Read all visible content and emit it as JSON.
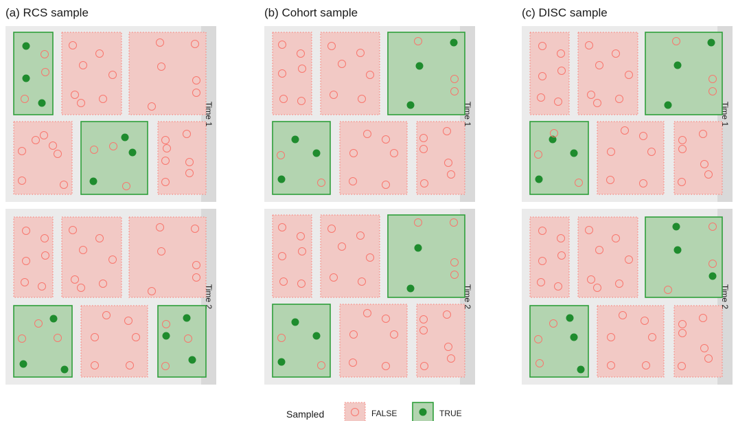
{
  "colors": {
    "panel_bg": "#ebebeb",
    "strip_bg": "#d9d9d9",
    "false_fill": "#f2c9c5",
    "false_stroke": "#f8766d",
    "true_fill": "#b3d4b0",
    "true_stroke": "#2e9e3a",
    "true_point": "#1f8c2e"
  },
  "icons": {
    "false_point": "hollow-circle-icon",
    "true_point": "filled-circle-icon"
  },
  "panels": [
    {
      "title": "(a) RCS sample",
      "facets": [
        {
          "label": "Time 1",
          "clusters": [
            {
              "sampled": true,
              "points": [
                [
                  1,
                  0
                ],
                [
                  0,
                  1
                ],
                [
                  1,
                  1
                ],
                [
                  0,
                  0
                ],
                [
                  1,
                  1
                ]
              ]
            },
            {
              "sampled": false,
              "points": [
                [
                  0
                ],
                [
                  0
                ],
                [
                  0
                ],
                [
                  0
                ],
                [
                  0
                ],
                [
                  0
                ],
                [
                  0
                ]
              ]
            },
            {
              "sampled": false,
              "points": [
                [
                  0
                ],
                [
                  0
                ],
                [
                  0
                ],
                [
                  0
                ],
                [
                  0
                ],
                [
                  0
                ]
              ]
            },
            {
              "sampled": false,
              "points": [
                [
                  0
                ],
                [
                  0
                ],
                [
                  0
                ],
                [
                  0
                ],
                [
                  0
                ],
                [
                  0
                ],
                [
                  0
                ]
              ]
            },
            {
              "sampled": true,
              "points": [
                [
                  0
                ],
                [
                  1
                ],
                [
                  1
                ],
                [
                  0
                ],
                [
                  1
                ],
                [
                  0
                ]
              ]
            },
            {
              "sampled": false,
              "points": [
                [
                  0
                ],
                [
                  0
                ],
                [
                  0
                ],
                [
                  0
                ],
                [
                  0
                ],
                [
                  0
                ]
              ]
            }
          ]
        },
        {
          "label": "Time 2",
          "clusters": [
            {
              "sampled": false
            },
            {
              "sampled": false
            },
            {
              "sampled": false
            },
            {
              "sampled": true
            },
            {
              "sampled": false
            },
            {
              "sampled": true
            }
          ]
        }
      ]
    },
    {
      "title": "(b) Cohort sample",
      "facets": [
        {
          "label": "Time 1",
          "clusters": [
            {
              "sampled": false
            },
            {
              "sampled": false
            },
            {
              "sampled": true
            },
            {
              "sampled": true
            },
            {
              "sampled": false
            },
            {
              "sampled": false
            }
          ]
        },
        {
          "label": "Time 2",
          "clusters": [
            {
              "sampled": false
            },
            {
              "sampled": false
            },
            {
              "sampled": true
            },
            {
              "sampled": true
            },
            {
              "sampled": false
            },
            {
              "sampled": false
            }
          ]
        }
      ]
    },
    {
      "title": "(c) DISC sample",
      "facets": [
        {
          "label": "Time 1",
          "clusters": [
            {
              "sampled": false
            },
            {
              "sampled": false
            },
            {
              "sampled": true
            },
            {
              "sampled": true
            },
            {
              "sampled": false
            },
            {
              "sampled": false
            }
          ]
        },
        {
          "label": "Time 2",
          "clusters": [
            {
              "sampled": false
            },
            {
              "sampled": false
            },
            {
              "sampled": true
            },
            {
              "sampled": true
            },
            {
              "sampled": false
            },
            {
              "sampled": false
            }
          ]
        }
      ]
    }
  ],
  "legend": {
    "title": "Sampled",
    "items": [
      {
        "label": "FALSE",
        "sampled": false
      },
      {
        "label": "TRUE",
        "sampled": true
      }
    ]
  }
}
